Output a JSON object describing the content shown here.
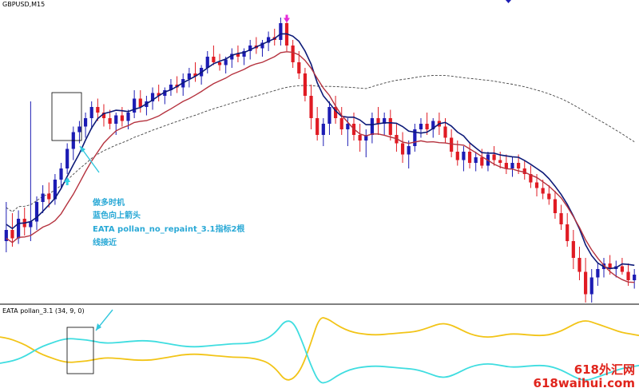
{
  "chart_data": [
    {
      "type": "candlestick",
      "title": "GBPUSD,M15",
      "panel": "main",
      "colors": {
        "bull": "#1c1cb4",
        "bear": "#e01b23",
        "fast_ma": "#0d1a78",
        "slow_ma": "#b5323e",
        "long_ma": "#444444",
        "arrow_up": "#32d4e6",
        "arrow_down": "#e62bd8"
      },
      "ylim": [
        0,
        100
      ],
      "grid": false,
      "candles": [
        {
          "o": 20,
          "h": 34,
          "l": 16,
          "c": 24
        },
        {
          "o": 24,
          "h": 30,
          "l": 18,
          "c": 21
        },
        {
          "o": 21,
          "h": 31,
          "l": 19,
          "c": 28
        },
        {
          "o": 28,
          "h": 32,
          "l": 22,
          "c": 25
        },
        {
          "o": 25,
          "h": 70,
          "l": 20,
          "c": 27
        },
        {
          "o": 27,
          "h": 36,
          "l": 24,
          "c": 34
        },
        {
          "o": 34,
          "h": 40,
          "l": 30,
          "c": 37
        },
        {
          "o": 37,
          "h": 41,
          "l": 32,
          "c": 35
        },
        {
          "o": 35,
          "h": 44,
          "l": 33,
          "c": 42
        },
        {
          "o": 42,
          "h": 48,
          "l": 39,
          "c": 46
        },
        {
          "o": 46,
          "h": 55,
          "l": 44,
          "c": 53
        },
        {
          "o": 53,
          "h": 61,
          "l": 49,
          "c": 59
        },
        {
          "o": 59,
          "h": 63,
          "l": 55,
          "c": 61
        },
        {
          "o": 61,
          "h": 66,
          "l": 57,
          "c": 64
        },
        {
          "o": 64,
          "h": 70,
          "l": 60,
          "c": 68
        },
        {
          "o": 68,
          "h": 71,
          "l": 63,
          "c": 66
        },
        {
          "o": 66,
          "h": 69,
          "l": 61,
          "c": 64
        },
        {
          "o": 64,
          "h": 67,
          "l": 60,
          "c": 62
        },
        {
          "o": 62,
          "h": 66,
          "l": 58,
          "c": 65
        },
        {
          "o": 65,
          "h": 68,
          "l": 61,
          "c": 63
        },
        {
          "o": 63,
          "h": 67,
          "l": 60,
          "c": 66
        },
        {
          "o": 66,
          "h": 74,
          "l": 64,
          "c": 71
        },
        {
          "o": 71,
          "h": 74,
          "l": 66,
          "c": 68
        },
        {
          "o": 68,
          "h": 72,
          "l": 65,
          "c": 70
        },
        {
          "o": 70,
          "h": 75,
          "l": 67,
          "c": 73
        },
        {
          "o": 73,
          "h": 76,
          "l": 70,
          "c": 72
        },
        {
          "o": 72,
          "h": 75,
          "l": 69,
          "c": 74
        },
        {
          "o": 74,
          "h": 78,
          "l": 72,
          "c": 76
        },
        {
          "o": 76,
          "h": 79,
          "l": 73,
          "c": 75
        },
        {
          "o": 75,
          "h": 80,
          "l": 72,
          "c": 78
        },
        {
          "o": 78,
          "h": 82,
          "l": 75,
          "c": 80
        },
        {
          "o": 80,
          "h": 84,
          "l": 77,
          "c": 79
        },
        {
          "o": 79,
          "h": 83,
          "l": 76,
          "c": 82
        },
        {
          "o": 82,
          "h": 88,
          "l": 80,
          "c": 86
        },
        {
          "o": 86,
          "h": 90,
          "l": 83,
          "c": 84
        },
        {
          "o": 84,
          "h": 87,
          "l": 81,
          "c": 83
        },
        {
          "o": 83,
          "h": 86,
          "l": 80,
          "c": 85
        },
        {
          "o": 85,
          "h": 89,
          "l": 82,
          "c": 87
        },
        {
          "o": 87,
          "h": 90,
          "l": 84,
          "c": 86
        },
        {
          "o": 86,
          "h": 89,
          "l": 83,
          "c": 88
        },
        {
          "o": 88,
          "h": 92,
          "l": 85,
          "c": 90
        },
        {
          "o": 90,
          "h": 93,
          "l": 87,
          "c": 89
        },
        {
          "o": 89,
          "h": 92,
          "l": 86,
          "c": 91
        },
        {
          "o": 91,
          "h": 95,
          "l": 88,
          "c": 93
        },
        {
          "o": 93,
          "h": 96,
          "l": 90,
          "c": 92
        },
        {
          "o": 92,
          "h": 100,
          "l": 90,
          "c": 98
        },
        {
          "o": 98,
          "h": 101,
          "l": 88,
          "c": 90
        },
        {
          "o": 90,
          "h": 92,
          "l": 82,
          "c": 84
        },
        {
          "o": 84,
          "h": 88,
          "l": 78,
          "c": 80
        },
        {
          "o": 80,
          "h": 82,
          "l": 70,
          "c": 72
        },
        {
          "o": 72,
          "h": 76,
          "l": 60,
          "c": 64
        },
        {
          "o": 64,
          "h": 68,
          "l": 56,
          "c": 58
        },
        {
          "o": 58,
          "h": 64,
          "l": 54,
          "c": 62
        },
        {
          "o": 62,
          "h": 70,
          "l": 58,
          "c": 68
        },
        {
          "o": 68,
          "h": 72,
          "l": 62,
          "c": 64
        },
        {
          "o": 64,
          "h": 68,
          "l": 58,
          "c": 60
        },
        {
          "o": 60,
          "h": 64,
          "l": 54,
          "c": 62
        },
        {
          "o": 62,
          "h": 66,
          "l": 56,
          "c": 58
        },
        {
          "o": 58,
          "h": 62,
          "l": 52,
          "c": 56
        },
        {
          "o": 56,
          "h": 60,
          "l": 50,
          "c": 58
        },
        {
          "o": 58,
          "h": 66,
          "l": 55,
          "c": 64
        },
        {
          "o": 64,
          "h": 68,
          "l": 58,
          "c": 62
        },
        {
          "o": 62,
          "h": 66,
          "l": 58,
          "c": 64
        },
        {
          "o": 64,
          "h": 67,
          "l": 56,
          "c": 58
        },
        {
          "o": 58,
          "h": 62,
          "l": 52,
          "c": 55
        },
        {
          "o": 55,
          "h": 59,
          "l": 48,
          "c": 51
        },
        {
          "o": 51,
          "h": 56,
          "l": 46,
          "c": 54
        },
        {
          "o": 54,
          "h": 62,
          "l": 52,
          "c": 60
        },
        {
          "o": 60,
          "h": 64,
          "l": 57,
          "c": 62
        },
        {
          "o": 62,
          "h": 66,
          "l": 58,
          "c": 60
        },
        {
          "o": 60,
          "h": 64,
          "l": 57,
          "c": 63
        },
        {
          "o": 63,
          "h": 66,
          "l": 58,
          "c": 61
        },
        {
          "o": 61,
          "h": 64,
          "l": 55,
          "c": 57
        },
        {
          "o": 57,
          "h": 60,
          "l": 50,
          "c": 52
        },
        {
          "o": 52,
          "h": 56,
          "l": 47,
          "c": 49
        },
        {
          "o": 49,
          "h": 54,
          "l": 45,
          "c": 52
        },
        {
          "o": 52,
          "h": 55,
          "l": 46,
          "c": 48
        },
        {
          "o": 48,
          "h": 52,
          "l": 45,
          "c": 50
        },
        {
          "o": 50,
          "h": 53,
          "l": 46,
          "c": 47
        },
        {
          "o": 47,
          "h": 52,
          "l": 45,
          "c": 51
        },
        {
          "o": 51,
          "h": 54,
          "l": 47,
          "c": 49
        },
        {
          "o": 49,
          "h": 52,
          "l": 46,
          "c": 48
        },
        {
          "o": 48,
          "h": 51,
          "l": 44,
          "c": 46
        },
        {
          "o": 46,
          "h": 50,
          "l": 43,
          "c": 48
        },
        {
          "o": 48,
          "h": 51,
          "l": 44,
          "c": 46
        },
        {
          "o": 46,
          "h": 49,
          "l": 42,
          "c": 44
        },
        {
          "o": 44,
          "h": 47,
          "l": 39,
          "c": 41
        },
        {
          "o": 41,
          "h": 44,
          "l": 36,
          "c": 39
        },
        {
          "o": 39,
          "h": 42,
          "l": 35,
          "c": 37
        },
        {
          "o": 37,
          "h": 40,
          "l": 33,
          "c": 35
        },
        {
          "o": 35,
          "h": 38,
          "l": 28,
          "c": 30
        },
        {
          "o": 30,
          "h": 33,
          "l": 24,
          "c": 26
        },
        {
          "o": 26,
          "h": 30,
          "l": 18,
          "c": 20
        },
        {
          "o": 20,
          "h": 24,
          "l": 10,
          "c": 14
        },
        {
          "o": 14,
          "h": 18,
          "l": 6,
          "c": 9
        },
        {
          "o": 9,
          "h": 14,
          "l": -2,
          "c": 1
        },
        {
          "o": 1,
          "h": 10,
          "l": -2,
          "c": 7
        },
        {
          "o": 7,
          "h": 12,
          "l": 4,
          "c": 10
        },
        {
          "o": 10,
          "h": 14,
          "l": 7,
          "c": 12
        },
        {
          "o": 12,
          "h": 15,
          "l": 8,
          "c": 10
        },
        {
          "o": 10,
          "h": 13,
          "l": 7,
          "c": 11
        },
        {
          "o": 11,
          "h": 14,
          "l": 8,
          "c": 9
        },
        {
          "o": 9,
          "h": 12,
          "l": 4,
          "c": 6
        },
        {
          "o": 6,
          "h": 10,
          "l": 3,
          "c": 8
        }
      ],
      "annotations": [
        {
          "kind": "arrow-up",
          "index": 10
        },
        {
          "kind": "arrow-down",
          "index": 46
        }
      ]
    },
    {
      "type": "line",
      "title": "EATA pollan_3.1 (34, 9, 0)",
      "panel": "indicator",
      "ylim": [
        0,
        100
      ],
      "series": [
        {
          "color": "#f2c417",
          "values": [
            68,
            66,
            62,
            57,
            50,
            44,
            40,
            36,
            34,
            35,
            36,
            38,
            40,
            40,
            39,
            38,
            37,
            37,
            38,
            40,
            42,
            44,
            45,
            45,
            44,
            43,
            42,
            41,
            41,
            40,
            38,
            34,
            25,
            10,
            12,
            28,
            60,
            95,
            92,
            84,
            78,
            74,
            72,
            71,
            71,
            72,
            73,
            74,
            75,
            78,
            82,
            86,
            85,
            80,
            74,
            70,
            68,
            68,
            70,
            72,
            72,
            71,
            70,
            70,
            72,
            76,
            82,
            88,
            90,
            86,
            82,
            78,
            74,
            72,
            70
          ]
        },
        {
          "color": "#3fdde0",
          "values": [
            33,
            35,
            38,
            43,
            50,
            56,
            60,
            64,
            66,
            65,
            64,
            62,
            60,
            60,
            61,
            62,
            63,
            63,
            62,
            60,
            58,
            56,
            55,
            55,
            56,
            57,
            58,
            59,
            59,
            60,
            62,
            66,
            75,
            90,
            88,
            62,
            30,
            6,
            8,
            16,
            22,
            26,
            28,
            29,
            29,
            28,
            27,
            26,
            25,
            22,
            18,
            14,
            15,
            20,
            26,
            30,
            32,
            32,
            30,
            28,
            28,
            29,
            30,
            30,
            28,
            24,
            18,
            12,
            10,
            14,
            18,
            22,
            26,
            28,
            30
          ]
        }
      ]
    }
  ],
  "annotation_text": {
    "line1": "做多时机",
    "line2": "蓝色向上箭头",
    "line3": "EATA pollan_no_repaint_3.1指标2根",
    "line4": "线接近"
  },
  "watermark": {
    "line1": "618外汇网",
    "line2": "618waihui.com"
  }
}
